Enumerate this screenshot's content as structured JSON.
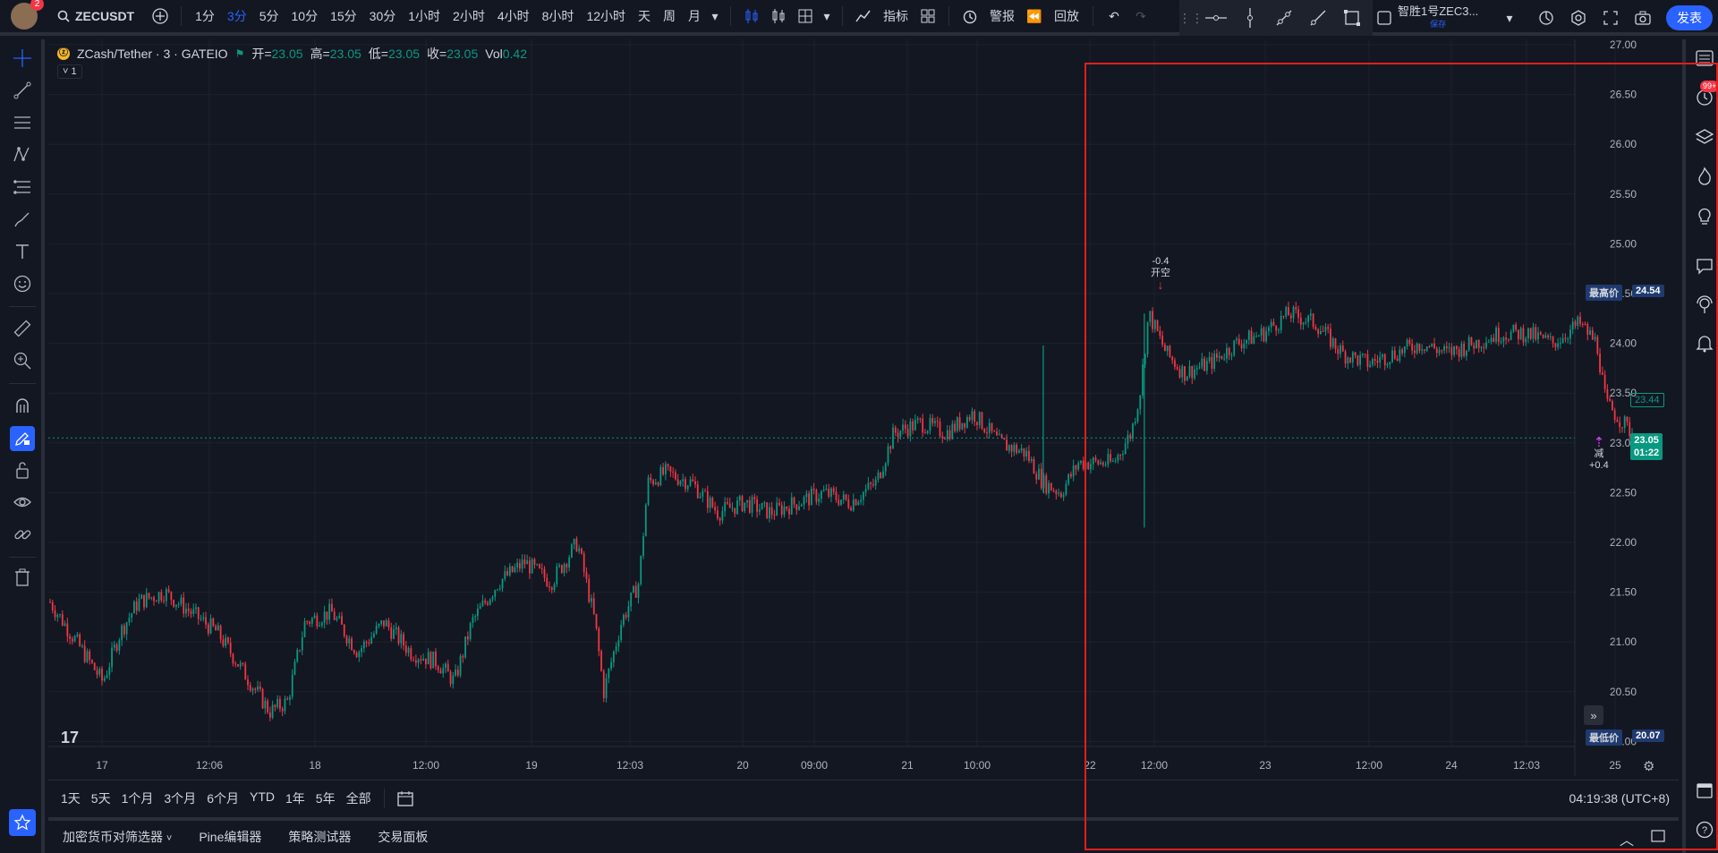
{
  "topbar": {
    "avatar_badge": "2",
    "symbol": "ZECUSDT",
    "intervals": [
      "1分",
      "3分",
      "5分",
      "10分",
      "15分",
      "30分",
      "1小时",
      "2小时",
      "4小时",
      "8小时",
      "12小时",
      "天",
      "周",
      "月"
    ],
    "active_interval": "3分",
    "indicators_label": "指标",
    "alert_label": "警报",
    "replay_label": "回放",
    "layout_name": "智胜1号ZEC3...",
    "layout_save": "保存",
    "publish_label": "发表"
  },
  "legend": {
    "title": "ZCash/Tether · 3 · GATEIO",
    "open_label": "开=",
    "open": "23.05",
    "high_label": "高=",
    "high": "23.05",
    "low_label": "低=",
    "low": "23.05",
    "close_label": "收=",
    "close": "23.05",
    "vol_label": "Vol",
    "vol": "0.42",
    "collapse": "1"
  },
  "price_axis": [
    "27.00",
    "26.50",
    "26.00",
    "25.50",
    "25.00",
    "24.50",
    "24.00",
    "23.50",
    "23.00",
    "22.50",
    "22.00",
    "21.50",
    "21.00",
    "20.50",
    "20.00"
  ],
  "time_axis": [
    "17",
    "12:06",
    "18",
    "12:00",
    "19",
    "12:03",
    "20",
    "09:00",
    "21",
    "10:00",
    "22",
    "12:00",
    "23",
    "12:00",
    "24",
    "12:03",
    "25"
  ],
  "tags": {
    "high_label": "最高价",
    "high_value": "24.54",
    "low_label": "最低价",
    "low_value": "20.07",
    "line_value": "23.44",
    "last_value": "23.05",
    "countdown": "01:22"
  },
  "trade_marks": {
    "short_value": "-0.4",
    "short_label": "开空",
    "reduce_label": "减",
    "reduce_value": "+0.4"
  },
  "range_bar": {
    "ranges": [
      "1天",
      "5天",
      "1个月",
      "3个月",
      "6个月",
      "YTD",
      "1年",
      "5年",
      "全部"
    ],
    "clock": "04:19:38 (UTC+8)"
  },
  "bottom_tabs": [
    "加密货币对筛选器",
    "Pine编辑器",
    "策略测试器",
    "交易面板"
  ],
  "right_badge": "99+",
  "chart_data": {
    "type": "candlestick",
    "x_labels": [
      "17",
      "12:06",
      "18",
      "12:00",
      "19",
      "12:03",
      "20",
      "09:00",
      "21",
      "10:00",
      "22",
      "12:00",
      "23",
      "12:00",
      "24",
      "12:03",
      "25"
    ],
    "ylim": [
      19.8,
      27.0
    ],
    "y_ticks": [
      27.0,
      26.5,
      26.0,
      25.5,
      25.0,
      24.5,
      24.0,
      23.5,
      23.0,
      22.5,
      22.0,
      21.5,
      21.0,
      20.5,
      20.0
    ],
    "approx_path": [
      [
        0,
        21.4
      ],
      [
        3,
        21.0
      ],
      [
        6,
        20.6
      ],
      [
        8,
        21.1
      ],
      [
        10,
        21.4
      ],
      [
        13,
        21.5
      ],
      [
        16,
        21.3
      ],
      [
        19,
        21.1
      ],
      [
        22,
        20.7
      ],
      [
        25,
        20.3
      ],
      [
        27,
        20.4
      ],
      [
        29,
        21.2
      ],
      [
        32,
        21.3
      ],
      [
        35,
        20.9
      ],
      [
        38,
        21.2
      ],
      [
        41,
        20.9
      ],
      [
        44,
        20.8
      ],
      [
        46,
        20.6
      ],
      [
        48,
        21.2
      ],
      [
        51,
        21.6
      ],
      [
        54,
        21.8
      ],
      [
        57,
        21.6
      ],
      [
        60,
        22.0
      ],
      [
        62,
        21.2
      ],
      [
        63,
        20.5
      ],
      [
        65,
        21.2
      ],
      [
        67,
        21.6
      ],
      [
        68,
        22.6
      ],
      [
        70,
        22.7
      ],
      [
        73,
        22.6
      ],
      [
        76,
        22.3
      ],
      [
        79,
        22.4
      ],
      [
        82,
        22.3
      ],
      [
        85,
        22.4
      ],
      [
        88,
        22.5
      ],
      [
        91,
        22.4
      ],
      [
        94,
        22.6
      ],
      [
        96,
        23.1
      ],
      [
        99,
        23.2
      ],
      [
        102,
        23.1
      ],
      [
        105,
        23.3
      ],
      [
        108,
        23.0
      ],
      [
        111,
        22.9
      ],
      [
        113,
        22.6
      ],
      [
        115,
        22.5
      ],
      [
        117,
        22.8
      ],
      [
        119,
        22.8
      ],
      [
        121,
        22.8
      ],
      [
        123,
        23.1
      ],
      [
        124,
        23.5
      ],
      [
        125,
        24.3
      ],
      [
        127,
        23.9
      ],
      [
        129,
        23.7
      ],
      [
        132,
        23.8
      ],
      [
        135,
        24.0
      ],
      [
        138,
        24.1
      ],
      [
        141,
        24.3
      ],
      [
        144,
        24.2
      ],
      [
        147,
        23.9
      ],
      [
        150,
        23.8
      ],
      [
        153,
        23.9
      ],
      [
        156,
        24.0
      ],
      [
        159,
        23.9
      ],
      [
        162,
        24.0
      ],
      [
        165,
        24.1
      ],
      [
        168,
        24.1
      ],
      [
        171,
        24.0
      ],
      [
        174,
        24.2
      ],
      [
        176,
        24.0
      ],
      [
        177,
        23.4
      ],
      [
        179,
        23.2
      ],
      [
        180,
        23.1
      ]
    ],
    "last_price": 23.05,
    "high": 24.54,
    "low": 20.07
  }
}
